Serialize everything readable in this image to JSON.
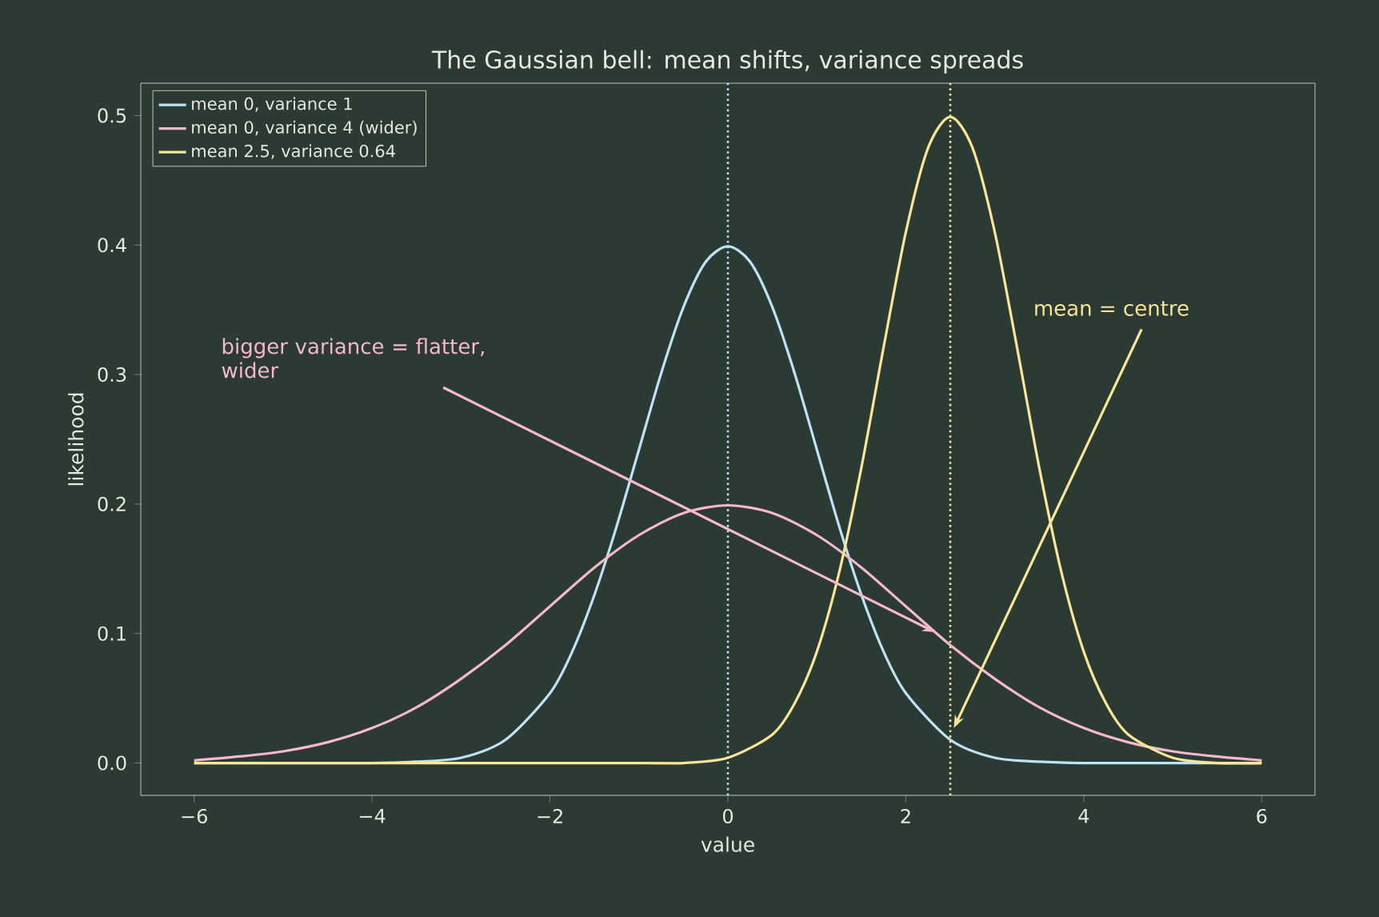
{
  "chart_data": {
    "type": "line",
    "title": "The Gaussian bell: mean shifts, variance spreads",
    "xlabel": "value",
    "ylabel": "likelihood",
    "series": [
      {
        "name": "mean 0, variance 1",
        "color": "#bde3f8",
        "x": [
          -6,
          -5,
          -4,
          -3.5,
          -3,
          -2.5,
          -2,
          -1.75,
          -1.5,
          -1.25,
          -1,
          -0.75,
          -0.5,
          -0.25,
          0,
          0.25,
          0.5,
          0.75,
          1,
          1.25,
          1.5,
          1.75,
          2,
          2.5,
          3,
          3.5,
          4,
          5,
          6
        ],
        "values": [
          0.0,
          0.0,
          0.0,
          0.001,
          0.004,
          0.018,
          0.054,
          0.086,
          0.13,
          0.183,
          0.242,
          0.301,
          0.352,
          0.387,
          0.399,
          0.387,
          0.352,
          0.301,
          0.242,
          0.183,
          0.13,
          0.086,
          0.054,
          0.018,
          0.004,
          0.001,
          0.0,
          0.0,
          0.0
        ]
      },
      {
        "name": "mean 0, variance 4 (wider)",
        "color": "#f7b8cc",
        "x": [
          -6,
          -5.5,
          -5,
          -4.5,
          -4,
          -3.5,
          -3,
          -2.5,
          -2,
          -1.5,
          -1,
          -0.5,
          0,
          0.5,
          1,
          1.5,
          2,
          2.5,
          3,
          3.5,
          4,
          4.5,
          5,
          5.5,
          6
        ],
        "values": [
          0.002,
          0.005,
          0.009,
          0.016,
          0.027,
          0.043,
          0.065,
          0.091,
          0.121,
          0.151,
          0.176,
          0.193,
          0.199,
          0.193,
          0.176,
          0.151,
          0.121,
          0.091,
          0.065,
          0.043,
          0.027,
          0.016,
          0.009,
          0.005,
          0.002
        ]
      },
      {
        "name": "mean 2.5, variance 0.64",
        "color": "#fbe596",
        "x": [
          -6,
          -1,
          -0.5,
          0,
          0.5,
          0.75,
          1,
          1.25,
          1.5,
          1.75,
          2,
          2.25,
          2.5,
          2.75,
          3,
          3.25,
          3.5,
          3.75,
          4,
          4.25,
          4.5,
          5,
          5.5,
          6
        ],
        "values": [
          0.0,
          0.0,
          0.0,
          0.004,
          0.022,
          0.046,
          0.086,
          0.147,
          0.228,
          0.321,
          0.41,
          0.475,
          0.499,
          0.475,
          0.41,
          0.321,
          0.228,
          0.147,
          0.086,
          0.046,
          0.022,
          0.004,
          0.0,
          0.0
        ]
      }
    ],
    "ref_lines": [
      {
        "axis": "x",
        "value": 0,
        "color": "#bde3f8",
        "line_style": "dotted"
      },
      {
        "axis": "x",
        "value": 2.5,
        "color": "#fbe596",
        "line_style": "dotted"
      }
    ],
    "annotations": [
      {
        "text": "bigger variance = flatter, wider",
        "x": 2.33,
        "y": 0.101
      },
      {
        "text": "mean = centre",
        "x": 2.54,
        "y": 0.027
      }
    ],
    "xlim": [
      -6.6,
      6.6
    ],
    "ylim": [
      -0.025,
      0.525
    ],
    "xticks": [
      {
        "value": -6,
        "label": "−6"
      },
      {
        "value": -4,
        "label": "−4"
      },
      {
        "value": -2,
        "label": "−2"
      },
      0,
      2,
      4,
      6
    ],
    "yticks": [
      {
        "value": 0,
        "label": "0.0"
      },
      {
        "value": 0.1,
        "label": "0.1"
      },
      {
        "value": 0.2,
        "label": "0.2"
      },
      {
        "value": 0.3,
        "label": "0.3"
      },
      {
        "value": 0.4,
        "label": "0.4"
      },
      {
        "value": 0.5,
        "label": "0.5"
      }
    ],
    "legend": "top left",
    "grid": false
  }
}
